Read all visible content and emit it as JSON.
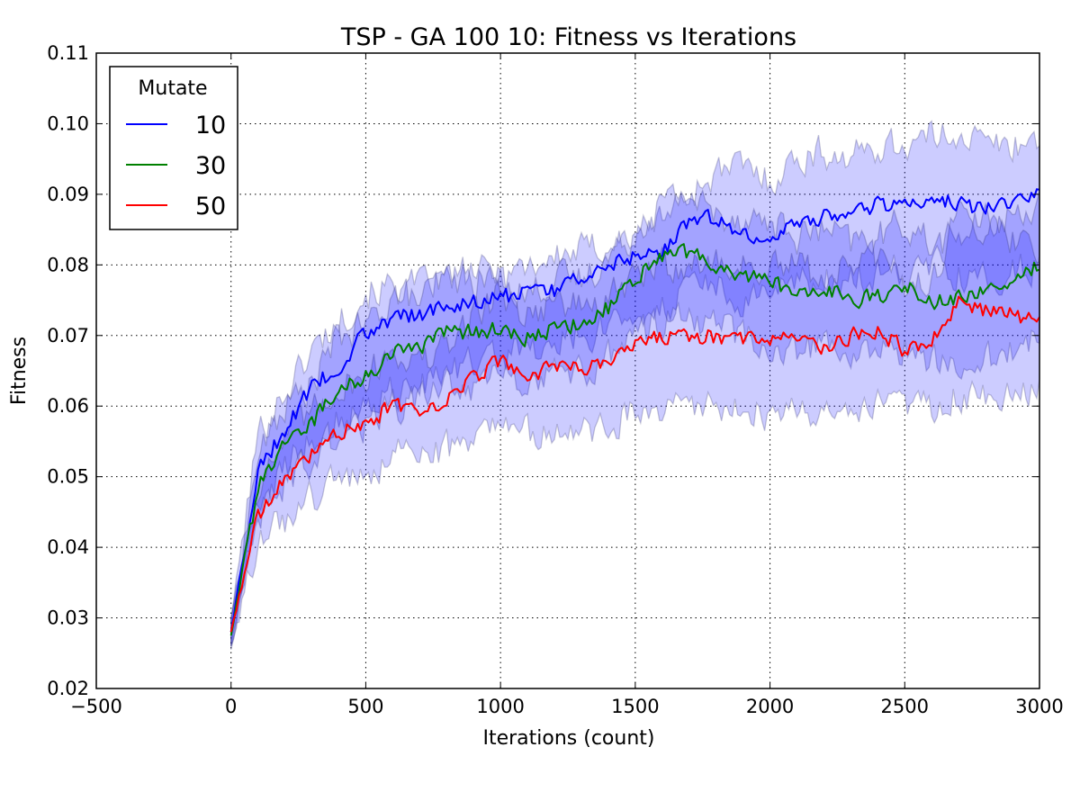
{
  "chart_data": {
    "type": "line",
    "title": "TSP - GA 100 10: Fitness vs Iterations",
    "xlabel": "Iterations (count)",
    "ylabel": "Fitness",
    "xlim": [
      -500,
      3000
    ],
    "ylim": [
      0.02,
      0.11
    ],
    "xticks": [
      -500,
      0,
      500,
      1000,
      1500,
      2000,
      2500,
      3000
    ],
    "xtick_labels": [
      "−500",
      "0",
      "500",
      "1000",
      "1500",
      "2000",
      "2500",
      "3000"
    ],
    "yticks": [
      0.02,
      0.03,
      0.04,
      0.05,
      0.06,
      0.07,
      0.08,
      0.09,
      0.1,
      0.11
    ],
    "ytick_labels": [
      "0.02",
      "0.03",
      "0.04",
      "0.05",
      "0.06",
      "0.07",
      "0.08",
      "0.09",
      "0.10",
      "0.11"
    ],
    "grid": true,
    "legend": {
      "title": "Mutate",
      "placement": "top-left"
    },
    "band_color": "#0000ff",
    "band_opacity": 0.2,
    "x": [
      0,
      100,
      200,
      300,
      400,
      500,
      600,
      700,
      800,
      900,
      1000,
      1100,
      1200,
      1300,
      1400,
      1500,
      1600,
      1700,
      1800,
      1900,
      2000,
      2100,
      2200,
      2300,
      2400,
      2500,
      2600,
      2700,
      2800,
      2900,
      3000
    ],
    "series": [
      {
        "name": "10",
        "color": "#0000ff",
        "values": [
          0.028,
          0.051,
          0.0565,
          0.063,
          0.0655,
          0.0705,
          0.0725,
          0.073,
          0.074,
          0.075,
          0.0755,
          0.076,
          0.0765,
          0.078,
          0.08,
          0.081,
          0.082,
          0.086,
          0.087,
          0.084,
          0.0835,
          0.086,
          0.087,
          0.0875,
          0.0885,
          0.089,
          0.0895,
          0.0885,
          0.088,
          0.089,
          0.09
        ],
        "lower": [
          0.026,
          0.046,
          0.051,
          0.056,
          0.058,
          0.06,
          0.062,
          0.063,
          0.064,
          0.066,
          0.067,
          0.068,
          0.069,
          0.07,
          0.071,
          0.073,
          0.074,
          0.076,
          0.077,
          0.075,
          0.075,
          0.077,
          0.078,
          0.078,
          0.079,
          0.079,
          0.08,
          0.079,
          0.078,
          0.079,
          0.08
        ],
        "upper": [
          0.03,
          0.056,
          0.062,
          0.068,
          0.072,
          0.076,
          0.077,
          0.077,
          0.078,
          0.079,
          0.079,
          0.08,
          0.081,
          0.082,
          0.083,
          0.084,
          0.087,
          0.09,
          0.093,
          0.094,
          0.092,
          0.095,
          0.096,
          0.095,
          0.097,
          0.097,
          0.098,
          0.099,
          0.097,
          0.097,
          0.098
        ]
      },
      {
        "name": "30",
        "color": "#008000",
        "values": [
          0.0275,
          0.0485,
          0.0545,
          0.0575,
          0.063,
          0.064,
          0.068,
          0.068,
          0.0705,
          0.0705,
          0.071,
          0.0695,
          0.071,
          0.0715,
          0.074,
          0.078,
          0.081,
          0.082,
          0.079,
          0.0785,
          0.0775,
          0.076,
          0.0765,
          0.075,
          0.0755,
          0.077,
          0.0745,
          0.0755,
          0.0765,
          0.0775,
          0.08
        ],
        "lower": [
          0.0255,
          0.044,
          0.049,
          0.052,
          0.056,
          0.057,
          0.06,
          0.061,
          0.063,
          0.063,
          0.064,
          0.063,
          0.064,
          0.065,
          0.067,
          0.07,
          0.072,
          0.073,
          0.071,
          0.07,
          0.069,
          0.068,
          0.068,
          0.067,
          0.067,
          0.068,
          0.066,
          0.067,
          0.067,
          0.068,
          0.07
        ],
        "upper": [
          0.0295,
          0.053,
          0.06,
          0.063,
          0.07,
          0.071,
          0.076,
          0.075,
          0.078,
          0.078,
          0.078,
          0.076,
          0.078,
          0.078,
          0.081,
          0.085,
          0.089,
          0.09,
          0.087,
          0.087,
          0.086,
          0.084,
          0.085,
          0.083,
          0.084,
          0.086,
          0.083,
          0.084,
          0.086,
          0.087,
          0.089
        ]
      },
      {
        "name": "50",
        "color": "#ff0000",
        "values": [
          0.028,
          0.0445,
          0.0495,
          0.053,
          0.0565,
          0.057,
          0.0605,
          0.0595,
          0.061,
          0.064,
          0.0665,
          0.0645,
          0.0655,
          0.065,
          0.066,
          0.0685,
          0.07,
          0.0695,
          0.07,
          0.0695,
          0.069,
          0.07,
          0.068,
          0.07,
          0.0705,
          0.068,
          0.069,
          0.0745,
          0.0735,
          0.073,
          0.072
        ],
        "lower": [
          0.026,
          0.04,
          0.044,
          0.047,
          0.05,
          0.05,
          0.053,
          0.053,
          0.054,
          0.055,
          0.057,
          0.056,
          0.056,
          0.056,
          0.057,
          0.059,
          0.06,
          0.059,
          0.06,
          0.059,
          0.059,
          0.06,
          0.058,
          0.06,
          0.06,
          0.059,
          0.06,
          0.062,
          0.061,
          0.062,
          0.063
        ],
        "upper": [
          0.03,
          0.049,
          0.055,
          0.059,
          0.063,
          0.064,
          0.068,
          0.066,
          0.068,
          0.073,
          0.076,
          0.073,
          0.075,
          0.074,
          0.075,
          0.078,
          0.08,
          0.08,
          0.08,
          0.08,
          0.079,
          0.08,
          0.078,
          0.08,
          0.081,
          0.077,
          0.078,
          0.087,
          0.086,
          0.084,
          0.082
        ]
      }
    ]
  }
}
